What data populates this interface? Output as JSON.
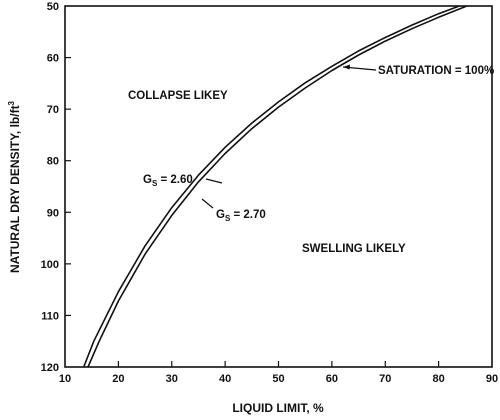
{
  "chart_data": {
    "type": "line",
    "title": "",
    "xlabel": "LIQUID LIMIT, %",
    "ylabel_main": "NATURAL DRY DENSITY, lb/ft",
    "ylabel_sup": "3",
    "xlim": [
      10,
      90
    ],
    "ylim": [
      50,
      120
    ],
    "y_inverted": true,
    "grid": false,
    "x_ticks": [
      10,
      20,
      30,
      40,
      50,
      60,
      70,
      80,
      90
    ],
    "y_ticks": [
      50,
      60,
      70,
      80,
      90,
      100,
      110,
      120
    ],
    "series": [
      {
        "name_prefix": "G",
        "name_sub": "S",
        "name_suffix": " = 2.60",
        "x": [
          13.5,
          15.4,
          20,
          25,
          30,
          35,
          40,
          45,
          50,
          55,
          60,
          65,
          70,
          75,
          80,
          86.5
        ],
        "y": [
          120,
          115,
          105.4,
          96.5,
          89.1,
          82.8,
          77.4,
          72.7,
          68.6,
          64.9,
          61.7,
          58.7,
          56.1,
          53.7,
          51.5,
          49
        ]
      },
      {
        "name_prefix": "G",
        "name_sub": "S",
        "name_suffix": " = 2.70",
        "x": [
          14.3,
          16.4,
          20,
          25,
          30,
          35,
          40,
          45,
          50,
          55,
          60,
          65,
          70,
          75,
          80,
          86
        ],
        "y": [
          120,
          115,
          107.2,
          98.1,
          90.6,
          84.1,
          78.6,
          73.8,
          69.6,
          65.9,
          62.5,
          59.5,
          56.8,
          54.4,
          52.2,
          49.7
        ]
      }
    ],
    "annotations": {
      "collapse": "COLLAPSE LIKEY",
      "swelling": "SWELLING LIKELY",
      "saturation": "SATURATION = 100%"
    }
  }
}
